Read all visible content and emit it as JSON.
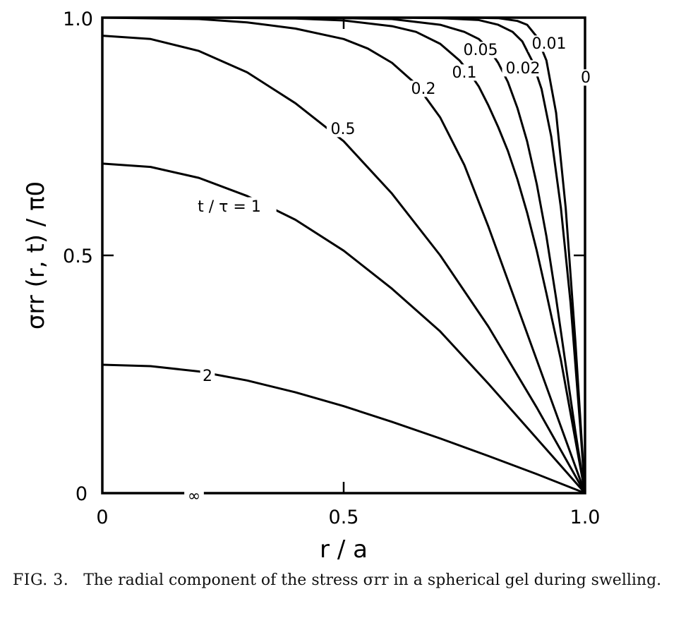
{
  "chart_data": {
    "type": "line",
    "xlabel": "r / a",
    "ylabel": "σrr (r, t) / π0",
    "xlim": [
      0,
      1
    ],
    "ylim": [
      0,
      1
    ],
    "x_ticks": [
      "0",
      "0.5",
      "1.0"
    ],
    "y_ticks": [
      "0",
      "0.5",
      "1.0"
    ],
    "grid": false,
    "series": [
      {
        "name": "0",
        "x": [
          0,
          0.95,
          1.0,
          1.0
        ],
        "y": [
          1.0,
          1.0,
          1.0,
          0
        ]
      },
      {
        "name": "0.01",
        "x": [
          0,
          0.4,
          0.6,
          0.75,
          0.82,
          0.86,
          0.88,
          0.9,
          0.92,
          0.94,
          0.96,
          0.98,
          1.0
        ],
        "y": [
          1.0,
          1.0,
          1.0,
          1.0,
          0.999,
          0.993,
          0.985,
          0.96,
          0.91,
          0.8,
          0.6,
          0.32,
          0
        ]
      },
      {
        "name": "0.02",
        "x": [
          0,
          0.4,
          0.6,
          0.7,
          0.78,
          0.82,
          0.85,
          0.87,
          0.89,
          0.91,
          0.93,
          0.95,
          0.97,
          0.99,
          1.0
        ],
        "y": [
          1.0,
          1.0,
          1.0,
          0.999,
          0.995,
          0.985,
          0.97,
          0.95,
          0.91,
          0.85,
          0.75,
          0.6,
          0.4,
          0.14,
          0
        ]
      },
      {
        "name": "0.05",
        "x": [
          0,
          0.3,
          0.5,
          0.6,
          0.7,
          0.75,
          0.78,
          0.8,
          0.82,
          0.84,
          0.86,
          0.88,
          0.9,
          0.92,
          0.94,
          0.96,
          0.98,
          1.0
        ],
        "y": [
          1.0,
          1.0,
          0.999,
          0.997,
          0.985,
          0.97,
          0.955,
          0.935,
          0.905,
          0.865,
          0.81,
          0.74,
          0.65,
          0.54,
          0.41,
          0.27,
          0.13,
          0
        ]
      },
      {
        "name": "0.1",
        "x": [
          0,
          0.2,
          0.4,
          0.5,
          0.6,
          0.65,
          0.7,
          0.74,
          0.76,
          0.78,
          0.8,
          0.82,
          0.84,
          0.86,
          0.88,
          0.9,
          0.92,
          0.95,
          1.0
        ],
        "y": [
          1.0,
          1.0,
          0.998,
          0.994,
          0.982,
          0.97,
          0.945,
          0.91,
          0.885,
          0.855,
          0.815,
          0.77,
          0.72,
          0.66,
          0.59,
          0.51,
          0.42,
          0.28,
          0
        ]
      },
      {
        "name": "0.2",
        "x": [
          0,
          0.2,
          0.3,
          0.4,
          0.5,
          0.55,
          0.6,
          0.65,
          0.7,
          0.75,
          0.8,
          0.85,
          0.9,
          0.95,
          1.0
        ],
        "y": [
          1.0,
          0.997,
          0.99,
          0.977,
          0.955,
          0.935,
          0.905,
          0.86,
          0.79,
          0.69,
          0.56,
          0.42,
          0.28,
          0.14,
          0
        ]
      },
      {
        "name": "0.5",
        "x": [
          0,
          0.1,
          0.2,
          0.3,
          0.4,
          0.5,
          0.6,
          0.7,
          0.8,
          0.9,
          1.0
        ],
        "y": [
          0.962,
          0.955,
          0.93,
          0.885,
          0.82,
          0.74,
          0.63,
          0.5,
          0.35,
          0.18,
          0
        ]
      },
      {
        "name": "t / τ = 1",
        "x": [
          0,
          0.1,
          0.2,
          0.3,
          0.4,
          0.5,
          0.6,
          0.7,
          0.8,
          0.9,
          1.0
        ],
        "y": [
          0.693,
          0.686,
          0.663,
          0.625,
          0.575,
          0.51,
          0.43,
          0.34,
          0.23,
          0.115,
          0
        ]
      },
      {
        "name": "2",
        "x": [
          0,
          0.1,
          0.2,
          0.3,
          0.4,
          0.5,
          0.6,
          0.7,
          0.8,
          0.9,
          1.0
        ],
        "y": [
          0.27,
          0.267,
          0.256,
          0.237,
          0.212,
          0.183,
          0.15,
          0.115,
          0.078,
          0.04,
          0
        ]
      },
      {
        "name": "∞",
        "x": [
          0,
          1.0
        ],
        "y": [
          0,
          0
        ]
      }
    ]
  },
  "caption": {
    "label": "FIG. 3.",
    "text": "The radial component of the stress σrr in a spherical gel during swelling."
  }
}
